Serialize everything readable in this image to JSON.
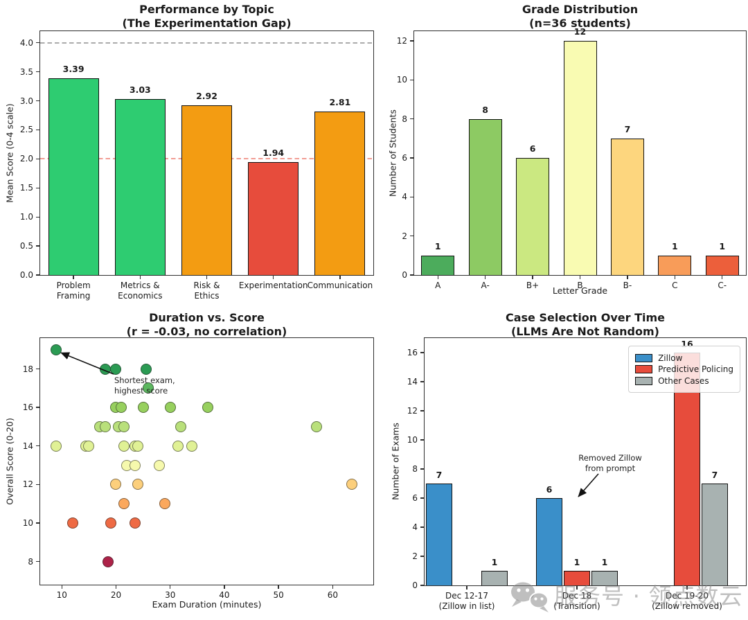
{
  "watermark": {
    "icon": "wechat-icon",
    "text": "服务号 · 领点数云"
  },
  "chart_data": [
    {
      "id": "performance-by-topic",
      "type": "bar",
      "title": "Performance by Topic",
      "subtitle": "(The Experimentation Gap)",
      "ylabel": "Mean Score (0-4 scale)",
      "xlabel": "",
      "categories": [
        "Problem\nFraming",
        "Metrics &\nEconomics",
        "Risk &\nEthics",
        "Experimentation",
        "Communication"
      ],
      "values": [
        3.39,
        3.03,
        2.92,
        1.94,
        2.81
      ],
      "value_labels": [
        "3.39",
        "3.03",
        "2.92",
        "1.94",
        "2.81"
      ],
      "bar_colors": [
        "#2ecc71",
        "#2ecc71",
        "#f39c12",
        "#e74c3c",
        "#f39c12"
      ],
      "ylim": [
        0,
        4.2
      ],
      "yticks": [
        "0.0",
        "0.5",
        "1.0",
        "1.5",
        "2.0",
        "2.5",
        "3.0",
        "3.5",
        "4.0"
      ],
      "ref_lines": [
        {
          "y": 4.0,
          "color": "rgba(150,150,150,0.8)"
        },
        {
          "y": 2.0,
          "color": "rgba(231,76,60,0.55)"
        }
      ],
      "grid": false,
      "legend": null
    },
    {
      "id": "grade-distribution",
      "type": "bar",
      "title": "Grade Distribution",
      "subtitle": "(n=36 students)",
      "ylabel": "Number of Students",
      "xlabel": "Letter Grade",
      "categories": [
        "A",
        "A-",
        "B+",
        "B",
        "B-",
        "C",
        "C-"
      ],
      "values": [
        1,
        8,
        6,
        12,
        7,
        1,
        1
      ],
      "value_labels": [
        "1",
        "8",
        "6",
        "12",
        "7",
        "1",
        "1"
      ],
      "bar_colors": [
        "#4cac5c",
        "#8dca63",
        "#cbe881",
        "#f9fbb2",
        "#fdd67e",
        "#f89c59",
        "#ec5f3b"
      ],
      "ylim": [
        0,
        12.5
      ],
      "yticks": [
        "0",
        "2",
        "4",
        "6",
        "8",
        "10",
        "12"
      ],
      "ref_lines": [],
      "grid": false,
      "legend": null
    },
    {
      "id": "duration-vs-score",
      "type": "scatter",
      "title": "Duration vs. Score",
      "subtitle": "(r = -0.03, no correlation)",
      "ylabel": "Overall Score (0-20)",
      "xlabel": "Exam Duration (minutes)",
      "xlim": [
        6,
        67.5
      ],
      "ylim": [
        6.8,
        19.6
      ],
      "xticks": [
        "10",
        "20",
        "30",
        "40",
        "50",
        "60"
      ],
      "yticks": [
        "8",
        "10",
        "12",
        "14",
        "16",
        "18"
      ],
      "points": [
        {
          "x": 9,
          "y": 19,
          "color": "#2b9b53"
        },
        {
          "x": 18,
          "y": 18,
          "color": "#2b9b53"
        },
        {
          "x": 20,
          "y": 18,
          "color": "#2b9b53"
        },
        {
          "x": 25.5,
          "y": 18,
          "color": "#2b9b53"
        },
        {
          "x": 26,
          "y": 17,
          "color": "#5cb75f"
        },
        {
          "x": 20,
          "y": 16,
          "color": "#97d05e"
        },
        {
          "x": 21,
          "y": 16,
          "color": "#97d05e"
        },
        {
          "x": 25,
          "y": 16,
          "color": "#97d05e"
        },
        {
          "x": 30,
          "y": 16,
          "color": "#97d05e"
        },
        {
          "x": 37,
          "y": 16,
          "color": "#97d05e"
        },
        {
          "x": 17,
          "y": 15,
          "color": "#b9e07b"
        },
        {
          "x": 18,
          "y": 15,
          "color": "#b9e07b"
        },
        {
          "x": 20.5,
          "y": 15,
          "color": "#b9e07b"
        },
        {
          "x": 21.5,
          "y": 15,
          "color": "#b9e07b"
        },
        {
          "x": 32,
          "y": 15,
          "color": "#b9e07b"
        },
        {
          "x": 57,
          "y": 15,
          "color": "#b9e07b"
        },
        {
          "x": 9,
          "y": 14,
          "color": "#e0f195"
        },
        {
          "x": 14.5,
          "y": 14,
          "color": "#e0f195"
        },
        {
          "x": 15,
          "y": 14,
          "color": "#e0f195"
        },
        {
          "x": 21.5,
          "y": 14,
          "color": "#e0f195"
        },
        {
          "x": 23.5,
          "y": 14,
          "color": "#e0f195"
        },
        {
          "x": 24,
          "y": 14,
          "color": "#e0f195"
        },
        {
          "x": 31.5,
          "y": 14,
          "color": "#e0f195"
        },
        {
          "x": 34,
          "y": 14,
          "color": "#e0f195"
        },
        {
          "x": 22,
          "y": 13,
          "color": "#f6f9ad"
        },
        {
          "x": 23.5,
          "y": 13,
          "color": "#f6f9ad"
        },
        {
          "x": 28,
          "y": 13,
          "color": "#f6f9ad"
        },
        {
          "x": 20,
          "y": 12,
          "color": "#fccf7c"
        },
        {
          "x": 24,
          "y": 12,
          "color": "#fccf7c"
        },
        {
          "x": 63.5,
          "y": 12,
          "color": "#fccf7c"
        },
        {
          "x": 21.5,
          "y": 11,
          "color": "#fba85d"
        },
        {
          "x": 29,
          "y": 11,
          "color": "#fba85d"
        },
        {
          "x": 12,
          "y": 10,
          "color": "#ee6a44"
        },
        {
          "x": 19,
          "y": 10,
          "color": "#ee6a44"
        },
        {
          "x": 23.5,
          "y": 10,
          "color": "#ee6a44"
        },
        {
          "x": 18.5,
          "y": 8,
          "color": "#ad2248"
        }
      ],
      "annotation": {
        "text": "Shortest exam,\nhighest score",
        "arrow_to": {
          "x": 9,
          "y": 19
        }
      },
      "grid": false,
      "legend": null
    },
    {
      "id": "case-selection-over-time",
      "type": "grouped_bar",
      "title": "Case Selection Over Time",
      "subtitle": "(LLMs Are Not Random)",
      "ylabel": "Number of Exams",
      "xlabel": "",
      "categories": [
        "Dec 12-17\n(Zillow in list)",
        "Dec 18\n(Transition)",
        "Dec 19-20\n(Zillow removed)"
      ],
      "series": [
        {
          "name": "Zillow",
          "color": "#3a8fc9",
          "values": [
            7,
            6,
            0
          ]
        },
        {
          "name": "Predictive Policing",
          "color": "#e74c3c",
          "values": [
            0,
            1,
            16
          ]
        },
        {
          "name": "Other Cases",
          "color": "#a8b2b1",
          "values": [
            1,
            1,
            7
          ]
        }
      ],
      "ylim": [
        0,
        17
      ],
      "yticks": [
        "0",
        "2",
        "4",
        "6",
        "8",
        "10",
        "12",
        "14",
        "16"
      ],
      "annotation": {
        "text": "Removed Zillow\nfrom prompt"
      },
      "grid": false,
      "legend_position": "upper right"
    }
  ]
}
